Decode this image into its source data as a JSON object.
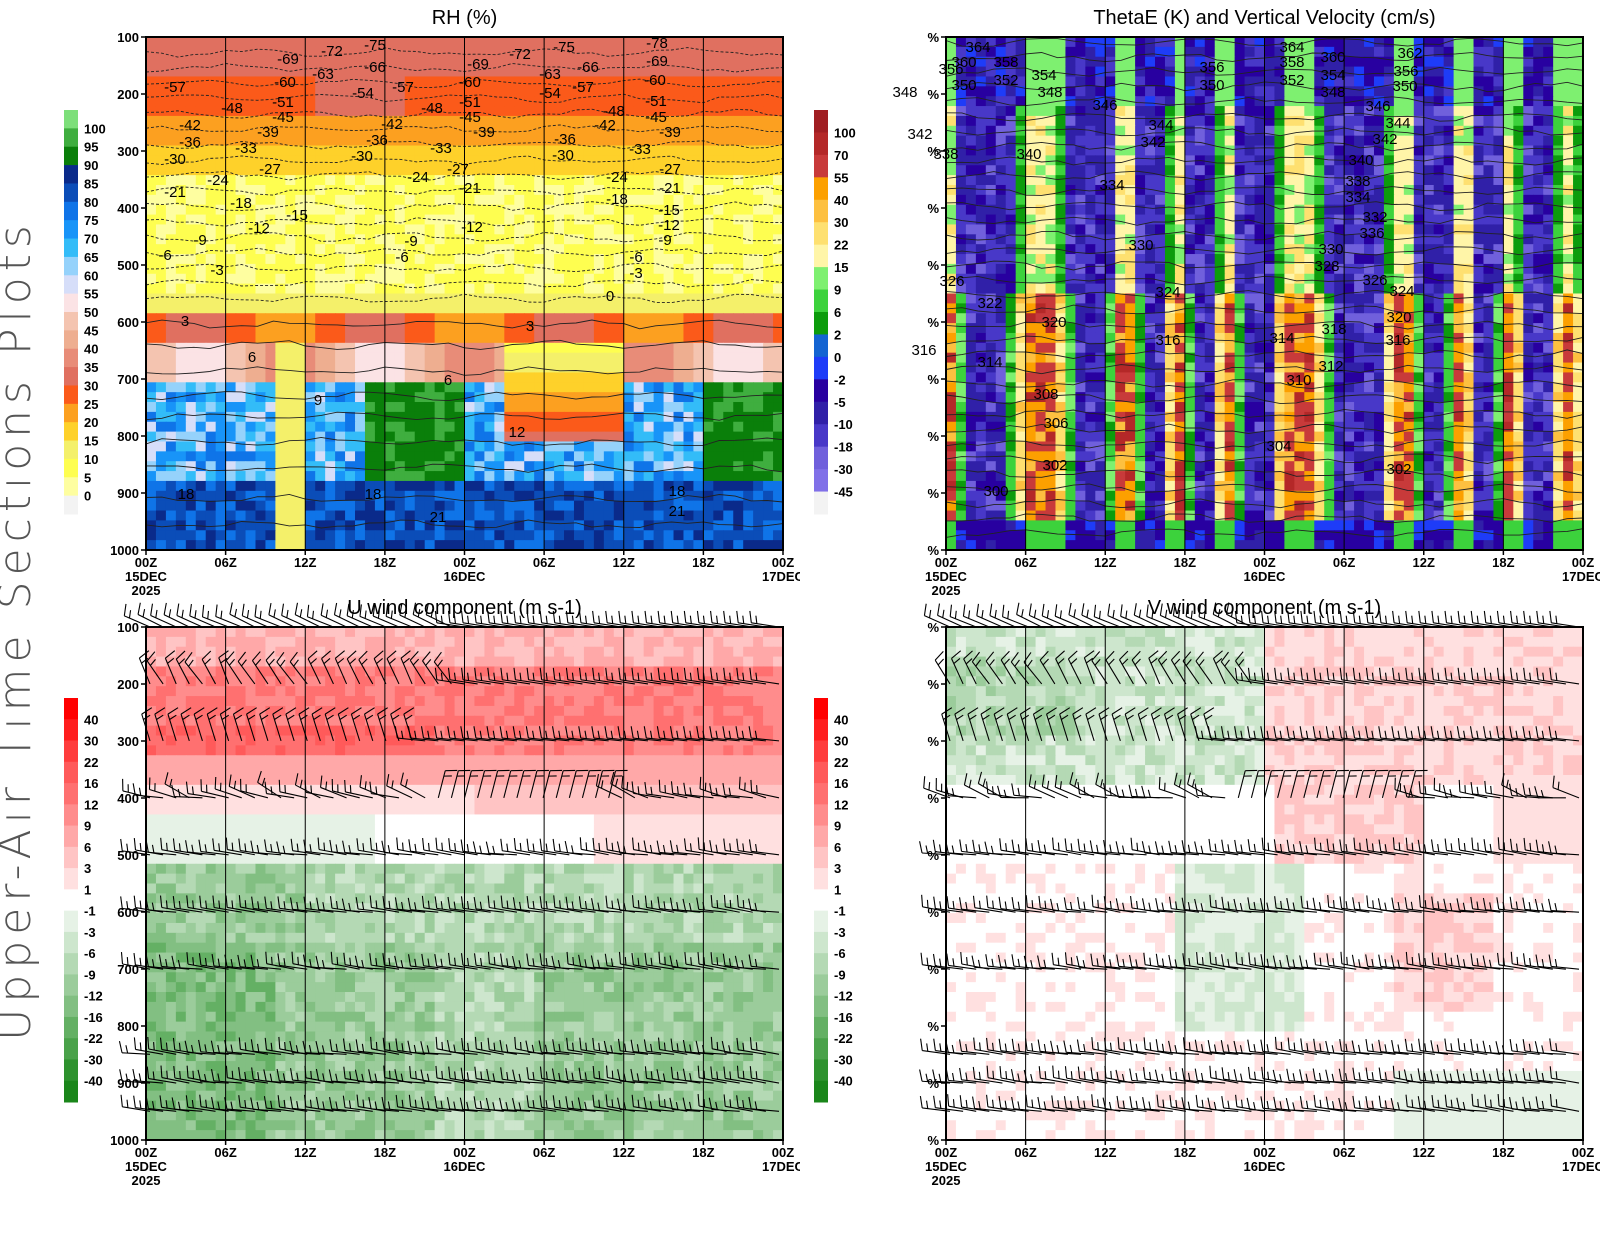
{
  "page": {
    "side_title": "Upper-Air Time Sections Plots"
  },
  "chart_data": [
    {
      "id": "rh",
      "type": "heatmap",
      "title": "RH (%)",
      "xlabel": "",
      "ylabel": "",
      "y_ticks": [
        "100",
        "200",
        "300",
        "400",
        "500",
        "600",
        "700",
        "800",
        "900",
        "1000"
      ],
      "ylim": [
        100,
        1000
      ],
      "x_ticks": [
        {
          "label": "00Z",
          "sub": "15DEC",
          "sub2": "2025"
        },
        {
          "label": "06Z"
        },
        {
          "label": "12Z"
        },
        {
          "label": "18Z"
        },
        {
          "label": "00Z",
          "sub": "16DEC"
        },
        {
          "label": "06Z"
        },
        {
          "label": "12Z"
        },
        {
          "label": "18Z"
        },
        {
          "label": "00Z",
          "sub": "17DEC"
        }
      ],
      "grid": true,
      "colorbar": {
        "placement": "left",
        "labels": [
          "100",
          "95",
          "90",
          "85",
          "80",
          "75",
          "70",
          "65",
          "60",
          "55",
          "50",
          "45",
          "40",
          "35",
          "30",
          "25",
          "20",
          "15",
          "10",
          "5",
          "0"
        ],
        "colors": [
          "#7ddf7a",
          "#3fae3f",
          "#0a7f0a",
          "#0a2a8a",
          "#0b4db8",
          "#0f74e8",
          "#1894f8",
          "#33bcf8",
          "#95d2fb",
          "#d6def9",
          "#fbe3e5",
          "#f4c4b0",
          "#eeae90",
          "#e88c78",
          "#e07060",
          "#fb5a1a",
          "#fca020",
          "#fed12a",
          "#f4f06a",
          "#fefe50",
          "#fefea0",
          "#f3f3f3"
        ]
      },
      "contour_labels": [
        "-78",
        "-75",
        "-72",
        "-69",
        "-66",
        "-63",
        "-60",
        "-57",
        "-54",
        "-51",
        "-48",
        "-45",
        "-42",
        "-39",
        "-36",
        "-33",
        "-30",
        "-27",
        "-24",
        "-21",
        "-18",
        "-15",
        "-12",
        "-9",
        "-6",
        "-3",
        "0",
        "3",
        "6",
        "9",
        "12",
        "18",
        "21"
      ]
    },
    {
      "id": "thetae",
      "type": "heatmap",
      "title": "ThetaE (K) and Vertical Velocity (cm/s)",
      "y_ticks": [
        "%",
        "%",
        "%",
        "%",
        "%",
        "%",
        "%",
        "%",
        "%",
        "%"
      ],
      "x_ticks": [
        {
          "label": "00Z",
          "sub": "15DEC",
          "sub2": "2025"
        },
        {
          "label": "06Z"
        },
        {
          "label": "12Z"
        },
        {
          "label": "18Z"
        },
        {
          "label": "00Z",
          "sub": "16DEC"
        },
        {
          "label": "06Z"
        },
        {
          "label": "12Z"
        },
        {
          "label": "18Z"
        },
        {
          "label": "00Z",
          "sub": "17DEC"
        }
      ],
      "grid": true,
      "colorbar": {
        "placement": "left",
        "labels": [
          "100",
          "70",
          "55",
          "40",
          "30",
          "22",
          "15",
          "9",
          "6",
          "2",
          "0",
          "-2",
          "-5",
          "-10",
          "-18",
          "-30",
          "-45"
        ],
        "colors": [
          "#a01e22",
          "#b42828",
          "#c83a3a",
          "#fca000",
          "#fdc040",
          "#fee070",
          "#fff5a8",
          "#7ef070",
          "#3cd23c",
          "#0c9c0c",
          "#1464d2",
          "#1e3cf8",
          "#2800a0",
          "#3020a8",
          "#4838c8",
          "#7060dc",
          "#8070e8",
          "#f3f3f3"
        ]
      },
      "contour_labels": [
        "364",
        "362",
        "360",
        "358",
        "356",
        "354",
        "352",
        "350",
        "348",
        "346",
        "344",
        "342",
        "340",
        "338",
        "336",
        "334",
        "332",
        "330",
        "328",
        "326",
        "324",
        "322",
        "320",
        "318",
        "316",
        "314",
        "312",
        "310",
        "308",
        "306",
        "304",
        "302",
        "300"
      ]
    },
    {
      "id": "uwind",
      "type": "heatmap",
      "title": "U wind component (m s-1)",
      "y_ticks": [
        "100",
        "200",
        "300",
        "400",
        "500",
        "600",
        "700",
        "800",
        "900",
        "1000"
      ],
      "ylim": [
        100,
        1000
      ],
      "x_ticks": [
        {
          "label": "00Z",
          "sub": "15DEC",
          "sub2": "2025"
        },
        {
          "label": "06Z"
        },
        {
          "label": "12Z"
        },
        {
          "label": "18Z"
        },
        {
          "label": "00Z",
          "sub": "16DEC"
        },
        {
          "label": "06Z"
        },
        {
          "label": "12Z"
        },
        {
          "label": "18Z"
        },
        {
          "label": "00Z",
          "sub": "17DEC"
        }
      ],
      "grid": true,
      "colorbar": {
        "placement": "left",
        "labels": [
          "40",
          "30",
          "22",
          "16",
          "12",
          "9",
          "6",
          "3",
          "1",
          "-1",
          "-3",
          "-6",
          "-9",
          "-12",
          "-16",
          "-22",
          "-30",
          "-40"
        ],
        "colors": [
          "#ff0000",
          "#ff1e1e",
          "#ff3c3c",
          "#ff5a5a",
          "#ff7070",
          "#ff8c8c",
          "#ffa8a8",
          "#ffc4c4",
          "#ffe0e0",
          "#ffffff",
          "#e6f2e6",
          "#cde6cd",
          "#b4d9b4",
          "#9bcc9b",
          "#82bf82",
          "#64b064",
          "#4aa24a",
          "#2e922e",
          "#1a861a"
        ]
      },
      "wind_barb_levels": [
        "100",
        "200",
        "300",
        "400",
        "500",
        "600",
        "700",
        "850",
        "900",
        "950"
      ]
    },
    {
      "id": "vwind",
      "type": "heatmap",
      "title": "V wind component (m s-1)",
      "y_ticks": [
        "%",
        "%",
        "%",
        "%",
        "%",
        "%",
        "%",
        "%",
        "%",
        "%"
      ],
      "x_ticks": [
        {
          "label": "00Z",
          "sub": "15DEC",
          "sub2": "2025"
        },
        {
          "label": "06Z"
        },
        {
          "label": "12Z"
        },
        {
          "label": "18Z"
        },
        {
          "label": "00Z",
          "sub": "16DEC"
        },
        {
          "label": "06Z"
        },
        {
          "label": "12Z"
        },
        {
          "label": "18Z"
        },
        {
          "label": "00Z",
          "sub": "17DEC"
        }
      ],
      "grid": true,
      "colorbar": {
        "placement": "left",
        "labels": [
          "40",
          "30",
          "22",
          "16",
          "12",
          "9",
          "6",
          "3",
          "1",
          "-1",
          "-3",
          "-6",
          "-9",
          "-12",
          "-16",
          "-22",
          "-30",
          "-40"
        ],
        "colors": [
          "#ff0000",
          "#ff1e1e",
          "#ff3c3c",
          "#ff5a5a",
          "#ff7070",
          "#ff8c8c",
          "#ffa8a8",
          "#ffc4c4",
          "#ffe0e0",
          "#ffffff",
          "#e6f2e6",
          "#cde6cd",
          "#b4d9b4",
          "#9bcc9b",
          "#82bf82",
          "#64b064",
          "#4aa24a",
          "#2e922e",
          "#1a861a"
        ]
      },
      "wind_barb_levels": [
        "100",
        "200",
        "300",
        "400",
        "500",
        "600",
        "700",
        "850",
        "900",
        "950"
      ]
    }
  ]
}
